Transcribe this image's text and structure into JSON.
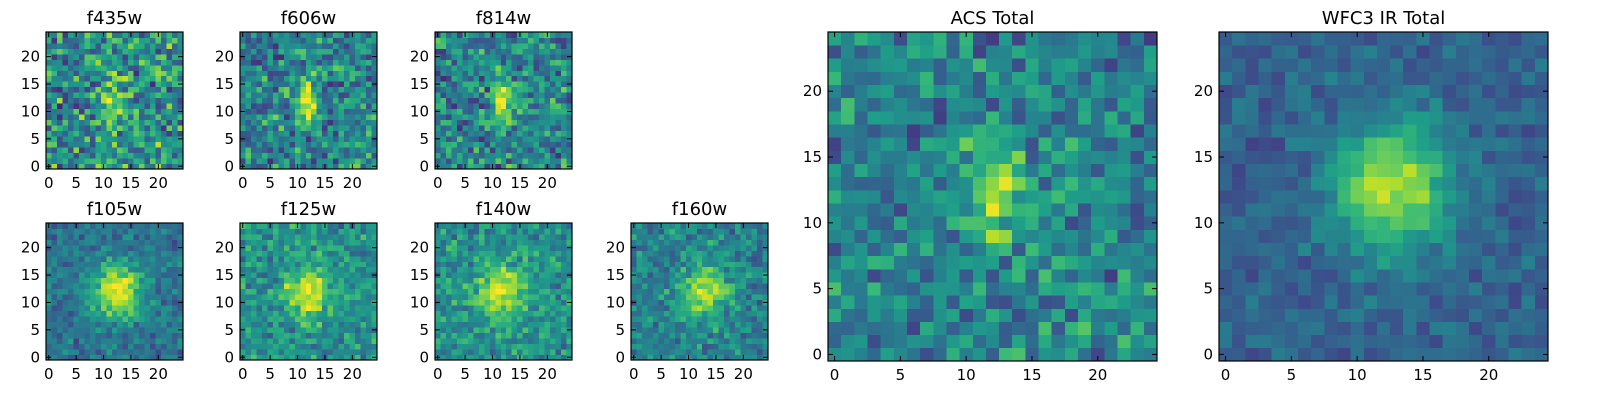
{
  "chart_data": [
    {
      "type": "heatmap",
      "title": "f435w",
      "colormap": "viridis",
      "grid_size": [
        25,
        25
      ],
      "xlim": [
        -0.5,
        24.5
      ],
      "ylim": [
        -0.5,
        24.5
      ],
      "xticks": [
        0,
        5,
        10,
        15,
        20
      ],
      "yticks": [
        0,
        5,
        10,
        15,
        20
      ],
      "xtick_labels": [
        "0",
        "5",
        "10",
        "15",
        "20"
      ],
      "ytick_labels": [
        "0",
        "5",
        "10",
        "15",
        "20"
      ],
      "peak": {
        "x": 12,
        "y": 12,
        "sigma_x": 1.6,
        "sigma_y": 2.6,
        "amplitude": 0.35
      },
      "noise": 0.42,
      "background": 0.5
    },
    {
      "type": "heatmap",
      "title": "f606w",
      "colormap": "viridis",
      "grid_size": [
        25,
        25
      ],
      "xlim": [
        -0.5,
        24.5
      ],
      "ylim": [
        -0.5,
        24.5
      ],
      "xticks": [
        0,
        5,
        10,
        15,
        20
      ],
      "yticks": [
        0,
        5,
        10,
        15,
        20
      ],
      "xtick_labels": [
        "0",
        "5",
        "10",
        "15",
        "20"
      ],
      "ytick_labels": [
        "0",
        "5",
        "10",
        "15",
        "20"
      ],
      "peak": {
        "x": 12,
        "y": 12,
        "sigma_x": 1.3,
        "sigma_y": 2.8,
        "amplitude": 0.55
      },
      "noise": 0.36,
      "background": 0.45
    },
    {
      "type": "heatmap",
      "title": "f814w",
      "colormap": "viridis",
      "grid_size": [
        25,
        25
      ],
      "xlim": [
        -0.5,
        24.5
      ],
      "ylim": [
        -0.5,
        24.5
      ],
      "xticks": [
        0,
        5,
        10,
        15,
        20
      ],
      "yticks": [
        0,
        5,
        10,
        15,
        20
      ],
      "xtick_labels": [
        "0",
        "5",
        "10",
        "15",
        "20"
      ],
      "ytick_labels": [
        "0",
        "5",
        "10",
        "15",
        "20"
      ],
      "peak": {
        "x": 12,
        "y": 12,
        "sigma_x": 1.4,
        "sigma_y": 2.8,
        "amplitude": 0.55
      },
      "noise": 0.36,
      "background": 0.45
    },
    {
      "type": "heatmap",
      "title": "f105w",
      "colormap": "viridis",
      "grid_size": [
        25,
        25
      ],
      "xlim": [
        -0.5,
        24.5
      ],
      "ylim": [
        -0.5,
        24.5
      ],
      "xticks": [
        0,
        5,
        10,
        15,
        20
      ],
      "yticks": [
        0,
        5,
        10,
        15,
        20
      ],
      "xtick_labels": [
        "0",
        "5",
        "10",
        "15",
        "20"
      ],
      "ytick_labels": [
        "0",
        "5",
        "10",
        "15",
        "20"
      ],
      "peak": {
        "x": 12.5,
        "y": 12,
        "sigma_x": 3.2,
        "sigma_y": 3.6,
        "amplitude": 0.6
      },
      "noise": 0.2,
      "background": 0.38
    },
    {
      "type": "heatmap",
      "title": "f125w",
      "colormap": "viridis",
      "grid_size": [
        25,
        25
      ],
      "xlim": [
        -0.5,
        24.5
      ],
      "ylim": [
        -0.5,
        24.5
      ],
      "xticks": [
        0,
        5,
        10,
        15,
        20
      ],
      "yticks": [
        0,
        5,
        10,
        15,
        20
      ],
      "xtick_labels": [
        "0",
        "5",
        "10",
        "15",
        "20"
      ],
      "ytick_labels": [
        "0",
        "5",
        "10",
        "15",
        "20"
      ],
      "peak": {
        "x": 12,
        "y": 12,
        "sigma_x": 3.0,
        "sigma_y": 3.2,
        "amplitude": 0.45
      },
      "noise": 0.26,
      "background": 0.5
    },
    {
      "type": "heatmap",
      "title": "f140w",
      "colormap": "viridis",
      "grid_size": [
        25,
        25
      ],
      "xlim": [
        -0.5,
        24.5
      ],
      "ylim": [
        -0.5,
        24.5
      ],
      "xticks": [
        0,
        5,
        10,
        15,
        20
      ],
      "yticks": [
        0,
        5,
        10,
        15,
        20
      ],
      "xtick_labels": [
        "0",
        "5",
        "10",
        "15",
        "20"
      ],
      "ytick_labels": [
        "0",
        "5",
        "10",
        "15",
        "20"
      ],
      "peak": {
        "x": 12,
        "y": 12,
        "sigma_x": 3.2,
        "sigma_y": 3.4,
        "amplitude": 0.45
      },
      "noise": 0.24,
      "background": 0.5
    },
    {
      "type": "heatmap",
      "title": "f160w",
      "colormap": "viridis",
      "grid_size": [
        25,
        25
      ],
      "xlim": [
        -0.5,
        24.5
      ],
      "ylim": [
        -0.5,
        24.5
      ],
      "xticks": [
        0,
        5,
        10,
        15,
        20
      ],
      "yticks": [
        0,
        5,
        10,
        15,
        20
      ],
      "xtick_labels": [
        "0",
        "5",
        "10",
        "15",
        "20"
      ],
      "ytick_labels": [
        "0",
        "5",
        "10",
        "15",
        "20"
      ],
      "peak": {
        "x": 13,
        "y": 12,
        "sigma_x": 2.8,
        "sigma_y": 3.2,
        "amplitude": 0.5
      },
      "noise": 0.24,
      "background": 0.45
    },
    {
      "type": "heatmap",
      "title": "ACS Total",
      "colormap": "viridis",
      "grid_size": [
        25,
        25
      ],
      "xlim": [
        -0.5,
        24.5
      ],
      "ylim": [
        -0.5,
        24.5
      ],
      "xticks": [
        0,
        5,
        10,
        15,
        20
      ],
      "yticks": [
        0,
        5,
        10,
        15,
        20
      ],
      "xtick_labels": [
        "0",
        "5",
        "10",
        "15",
        "20"
      ],
      "ytick_labels": [
        "0",
        "5",
        "10",
        "15",
        "20"
      ],
      "peak": {
        "x": 12,
        "y": 12.5,
        "sigma_x": 1.3,
        "sigma_y": 2.8,
        "amplitude": 0.5
      },
      "noise": 0.3,
      "background": 0.45
    },
    {
      "type": "heatmap",
      "title": "WFC3 IR Total",
      "colormap": "viridis",
      "grid_size": [
        25,
        25
      ],
      "xlim": [
        -0.5,
        24.5
      ],
      "ylim": [
        -0.5,
        24.5
      ],
      "xticks": [
        0,
        5,
        10,
        15,
        20
      ],
      "yticks": [
        0,
        5,
        10,
        15,
        20
      ],
      "xtick_labels": [
        "0",
        "5",
        "10",
        "15",
        "20"
      ],
      "ytick_labels": [
        "0",
        "5",
        "10",
        "15",
        "20"
      ],
      "peak": {
        "x": 12.5,
        "y": 12.5,
        "sigma_x": 3.0,
        "sigma_y": 3.4,
        "amplitude": 0.6
      },
      "noise": 0.14,
      "background": 0.32
    }
  ]
}
